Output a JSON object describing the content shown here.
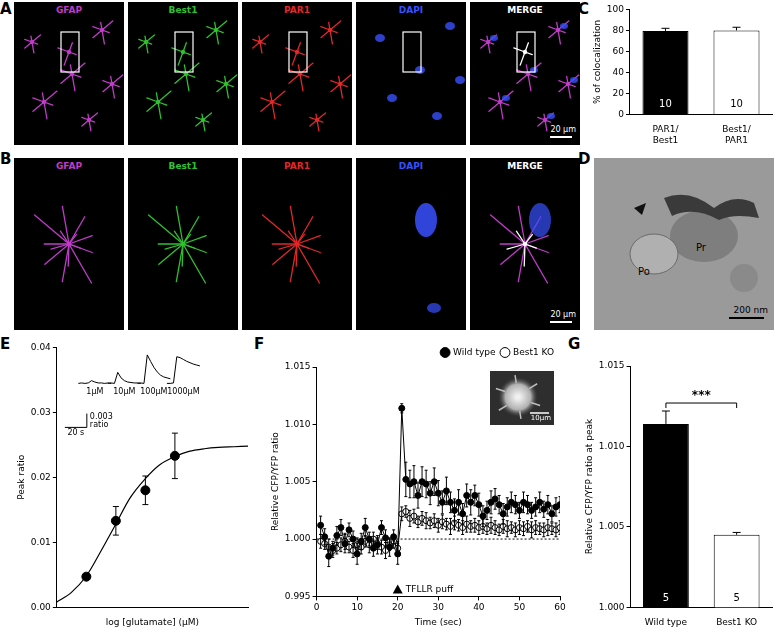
{
  "micrographs": [
    {
      "panel": "A",
      "channels": [
        "GFAP",
        "Best1",
        "PAR1",
        "DAPI",
        "MERGE"
      ],
      "colors": [
        "#c03cc8",
        "#30c030",
        "#e02828",
        "#3850ff",
        "#ffffff"
      ],
      "scale_bar": "20 µm"
    },
    {
      "panel": "B",
      "channels": [
        "GFAP",
        "Best1",
        "PAR1",
        "DAPI",
        "MERGE"
      ],
      "colors": [
        "#c03cc8",
        "#30c030",
        "#e02828",
        "#3850ff",
        "#ffffff"
      ],
      "scale_bar": "20 µm"
    },
    {
      "panel": "D",
      "labels": [
        "Po",
        "Pr"
      ],
      "scale_bar": "200 nm"
    }
  ],
  "chart_data": [
    {
      "panel": "C",
      "type": "bar",
      "categories": [
        [
          "PAR1/",
          "Best1"
        ],
        [
          "Best1/",
          "PAR1"
        ]
      ],
      "values": [
        79.5,
        80
      ],
      "errors": [
        2.5,
        3
      ],
      "n": [
        10,
        10
      ],
      "colors": [
        "#000000",
        "#ffffff"
      ],
      "ylabel": "% of colocalization",
      "ylim": [
        0,
        100
      ],
      "yticks": [
        0,
        20,
        40,
        60,
        80,
        100
      ],
      "grid": false
    },
    {
      "panel": "E",
      "type": "scatter",
      "x": [
        1,
        10,
        100,
        1000
      ],
      "values": [
        0.0047,
        0.0133,
        0.018,
        0.0233
      ],
      "errors": [
        0.0004,
        0.0022,
        0.0022,
        0.0035
      ],
      "fit": {
        "x": [
          0.1,
          0.3,
          1,
          3,
          10,
          30,
          100,
          300,
          1000,
          3000,
          10000,
          30000,
          100000,
          300000
        ],
        "values": [
          0.0008,
          0.0022,
          0.0048,
          0.0085,
          0.0128,
          0.0168,
          0.0198,
          0.0219,
          0.0232,
          0.024,
          0.0244,
          0.0246,
          0.0247,
          0.0248
        ]
      },
      "xlabel": "log [glutamate] (µM)",
      "ylabel": "Peak ratio",
      "log": "x",
      "tick_labels": "y",
      "xlim": [
        0.1,
        300000
      ],
      "ylim": [
        0,
        0.04
      ],
      "yticks": [
        {
          "value": 0,
          "label": "0.00"
        },
        {
          "value": 0.01,
          "label": "0.01"
        },
        {
          "value": 0.02,
          "label": "0.02"
        },
        {
          "value": 0.03,
          "label": "0.03"
        },
        {
          "value": 0.04,
          "label": "0.04"
        }
      ],
      "grid": false,
      "insets": {
        "sample_interval": 3,
        "traces": [
          {
            "label": "1µM",
            "values": [
              0,
              0.0001,
              0,
              0.0001,
              0.0006,
              0.0003,
              0.0001,
              0.0001,
              0,
              0.0001,
              0
            ]
          },
          {
            "label": "10µM",
            "values": [
              0,
              0.0001,
              0,
              0.0024,
              0.0012,
              0.0006,
              0.0003,
              0.0002,
              0.0001,
              0.0001,
              0
            ]
          },
          {
            "label": "100µM",
            "values": [
              0,
              0.0001,
              0,
              0.0062,
              0.0048,
              0.0035,
              0.0025,
              0.0018,
              0.0014,
              0.0012,
              0.001
            ]
          },
          {
            "label": "1000µM",
            "values": [
              0,
              0,
              0.0001,
              0.0058,
              0.0056,
              0.0052,
              0.0048,
              0.0045,
              0.0042,
              0.004,
              0.0038
            ]
          }
        ],
        "scale_bar": {
          "time": 20,
          "time_label": "20 s",
          "ratio": 0.003,
          "ratio_unit": "ratio"
        }
      }
    },
    {
      "panel": "F",
      "type": "line",
      "x": [
        1,
        2,
        3,
        4,
        5,
        6,
        7,
        8,
        9,
        10,
        11,
        12,
        13,
        14,
        15,
        16,
        17,
        18,
        19,
        20,
        21,
        22,
        23,
        24,
        25,
        26,
        27,
        28,
        29,
        30,
        31,
        32,
        33,
        34,
        35,
        36,
        37,
        38,
        39,
        40,
        41,
        42,
        43,
        44,
        45,
        46,
        47,
        48,
        49,
        50,
        51,
        52,
        53,
        54,
        55,
        56,
        57,
        58,
        59,
        60
      ],
      "series": [
        {
          "name": "Wild type",
          "color": "#000000",
          "marker": "filled circle",
          "line_style": "solid",
          "values": [
            1.0012,
            1.0002,
            0.9985,
            0.9992,
            1.0003,
            1.001,
            0.9996,
            1.0008,
            1.0,
            0.9987,
            0.9998,
            1.001,
            1.0,
            0.9992,
            0.9995,
            1.001,
            1.0001,
            0.9993,
            1.0002,
            0.9987,
            1.0114,
            1.0052,
            1.0048,
            1.005,
            1.0038,
            1.005,
            1.0048,
            1.004,
            1.005,
            1.004,
            1.0032,
            1.0042,
            1.0032,
            1.0025,
            1.0032,
            1.0022,
            1.0038,
            1.0032,
            1.0038,
            1.003,
            1.002,
            1.0025,
            1.0032,
            1.0035,
            1.003,
            1.0022,
            1.0028,
            1.0032,
            1.003,
            1.0025,
            1.0032,
            1.003,
            1.0025,
            1.0028,
            1.0032,
            1.0026,
            1.003,
            1.0022,
            1.0028,
            1.003
          ],
          "errors": [
            0.0008,
            0.0007,
            0.0009,
            0.0006,
            0.0008,
            0.0007,
            0.0008,
            0.0006,
            0.0007,
            0.0009,
            0.0007,
            0.0008,
            0.0006,
            0.0007,
            0.0008,
            0.0006,
            0.0007,
            0.0008,
            0.0006,
            0.0009,
            0.0004,
            0.0015,
            0.0012,
            0.0014,
            0.0011,
            0.0013,
            0.0012,
            0.001,
            0.0012,
            0.0011,
            0.001,
            0.0012,
            0.0009,
            0.001,
            0.0011,
            0.0009,
            0.001,
            0.0011,
            0.0009,
            0.001,
            0.0009,
            0.0008,
            0.001,
            0.0009,
            0.0008,
            0.0009,
            0.0008,
            0.0009,
            0.0008,
            0.0007,
            0.0009,
            0.0008,
            0.0007,
            0.0008,
            0.0009,
            0.0007,
            0.0008,
            0.0007,
            0.0008,
            0.0007
          ]
        },
        {
          "name": "Best1 KO",
          "color": "#000000",
          "marker": "open circle",
          "line_style": "solid",
          "values": [
            0.9998,
            0.9996,
            0.9993,
            0.999,
            0.9992,
            0.9995,
            0.9998,
            0.9993,
            0.999,
            0.9995,
            0.9993,
            0.9998,
            0.9995,
            1.0,
            0.9996,
            0.9993,
            0.999,
            0.9995,
            0.9998,
            0.9992,
            1.0022,
            1.0024,
            1.0018,
            1.002,
            1.0015,
            1.0018,
            1.0016,
            1.0014,
            1.0016,
            1.0012,
            1.0015,
            1.0013,
            1.0011,
            1.0014,
            1.0012,
            1.001,
            1.0013,
            1.0011,
            1.0012,
            1.001,
            1.0011,
            1.0009,
            1.0012,
            1.001,
            1.0008,
            1.0011,
            1.0009,
            1.001,
            1.0008,
            1.001,
            1.0009,
            1.0011,
            1.0008,
            1.001,
            1.0009,
            1.0008,
            1.001,
            1.0009,
            1.0008,
            1.001
          ],
          "errors": [
            0.0006,
            0.0005,
            0.0007,
            0.0006,
            0.0005,
            0.0006,
            0.0007,
            0.0005,
            0.0006,
            0.0006,
            0.0006,
            0.0005,
            0.0007,
            0.0006,
            0.0005,
            0.0006,
            0.0007,
            0.0005,
            0.0006,
            0.0006,
            0.0006,
            0.0005,
            0.0007,
            0.0006,
            0.0005,
            0.0006,
            0.0007,
            0.0005,
            0.0006,
            0.0006,
            0.0006,
            0.0005,
            0.0007,
            0.0006,
            0.0005,
            0.0006,
            0.0007,
            0.0005,
            0.0006,
            0.0006,
            0.0006,
            0.0005,
            0.0007,
            0.0006,
            0.0005,
            0.0006,
            0.0007,
            0.0005,
            0.0006,
            0.0006,
            0.0006,
            0.0005,
            0.0007,
            0.0006,
            0.0005,
            0.0006,
            0.0007,
            0.0005,
            0.0006,
            0.0006
          ]
        }
      ],
      "xlabel": "Time (sec)",
      "ylabel": "Relative CFP/YFP ratio",
      "xlim": [
        0,
        60
      ],
      "xticks": [
        0,
        10,
        20,
        30,
        40,
        50,
        60
      ],
      "ylim": [
        0.995,
        1.015
      ],
      "yticks": [
        0.995,
        {
          "value": 1,
          "label": "1.000"
        },
        1.005,
        {
          "value": 1.01,
          "label": "1.010"
        },
        1.015
      ],
      "baseline": 1,
      "annotation": {
        "text": "TFLLR puff",
        "x": 20
      },
      "inset_scale_bar": "10µm",
      "legend": "top right",
      "grid": false
    },
    {
      "panel": "G",
      "type": "bar",
      "categories": [
        "Wild type",
        "Best1 KO"
      ],
      "values": [
        1.0114,
        1.0045
      ],
      "errors": [
        0.0008,
        0.00015
      ],
      "n": [
        5,
        5
      ],
      "colors": [
        "#000000",
        "#ffffff"
      ],
      "ylabel": "Relative CFP/YFP ratio at peak",
      "ylim": [
        1,
        1.015
      ],
      "yticks": [
        {
          "value": 1,
          "label": "1.000"
        },
        1.005,
        {
          "value": 1.01,
          "label": "1.010"
        },
        1.015
      ],
      "significance": "***",
      "grid": false
    }
  ]
}
